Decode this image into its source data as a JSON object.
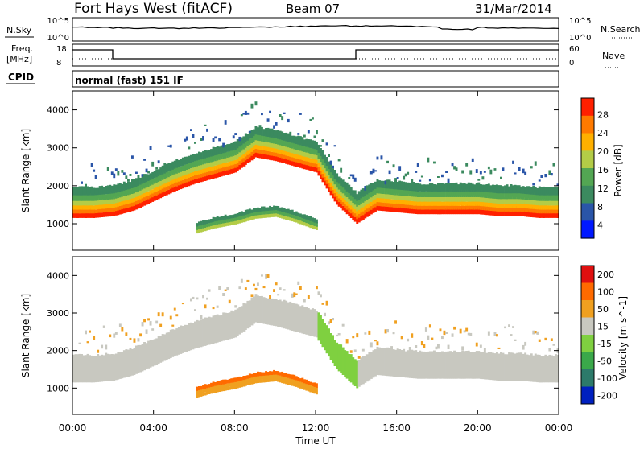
{
  "header": {
    "station": "Fort Hays West (fitACF)",
    "beam": "Beam 07",
    "date": "31/Mar/2014",
    "mode": "normal (fast) 151 IF"
  },
  "side_labels": {
    "nsky": "N.Sky",
    "nsearch": "N.Search",
    "freq_line1": "Freq.",
    "freq_line2": "[MHz]",
    "nave": "Nave",
    "cpid": "CPID"
  },
  "strip_ticks": {
    "noise_left": [
      "10^5",
      "10^0"
    ],
    "noise_right": [
      "10^5",
      "10^0"
    ],
    "freq_left": [
      "18",
      "8"
    ],
    "freq_right": [
      "60",
      "0"
    ]
  },
  "chart_data": [
    {
      "type": "heatmap",
      "quantity": "Power",
      "ylabel": "Slant Range [km]",
      "ylim": [
        300,
        4500
      ],
      "yticks": [
        1000,
        2000,
        3000,
        4000
      ],
      "colorbar_label": "Power [dB]",
      "colorbar_ticks": [
        "28",
        "24",
        "20",
        "16",
        "12",
        "8",
        "4"
      ],
      "colors": [
        "#0018ff",
        "#2a55a8",
        "#3b8a5f",
        "#53a653",
        "#b3cc47",
        "#ffb000",
        "#ff7a00",
        "#ff2000"
      ],
      "bands": [
        {
          "name": "main echo lower edge (km)",
          "x_hours": [
            0,
            1,
            2,
            3,
            4,
            5,
            6,
            7,
            8,
            9,
            10,
            11,
            12,
            13,
            14,
            15,
            16,
            17,
            18,
            19,
            20,
            21,
            22,
            23,
            24
          ],
          "y_km": [
            1150,
            1150,
            1200,
            1350,
            1600,
            1850,
            2050,
            2200,
            2350,
            2750,
            2650,
            2500,
            2350,
            1500,
            1000,
            1350,
            1300,
            1250,
            1250,
            1250,
            1250,
            1200,
            1200,
            1150,
            1150
          ]
        },
        {
          "name": "lower echo patch",
          "x_hours": [
            6,
            7,
            8,
            9,
            10,
            11,
            12
          ],
          "y_km": [
            850,
            1000,
            1100,
            1250,
            1300,
            1150,
            950
          ]
        }
      ]
    },
    {
      "type": "heatmap",
      "quantity": "Velocity",
      "ylabel": "Slant Range [km]",
      "ylim": [
        300,
        4500
      ],
      "yticks": [
        1000,
        2000,
        3000,
        4000
      ],
      "colorbar_label": "Velocity [m s^-1]",
      "colorbar_ticks": [
        "200",
        "100",
        "50",
        "15",
        "-15",
        "-50",
        "-100",
        "-200"
      ],
      "colors": [
        "#0020c0",
        "#2c7a6a",
        "#3aa84a",
        "#7fd040",
        "#c8c8c0",
        "#f0a020",
        "#ff6a00",
        "#e01010"
      ],
      "x_ticks": [
        "00:00",
        "04:00",
        "08:00",
        "12:00",
        "16:00",
        "20:00",
        "00:00"
      ],
      "xlabel": "Time UT"
    }
  ]
}
